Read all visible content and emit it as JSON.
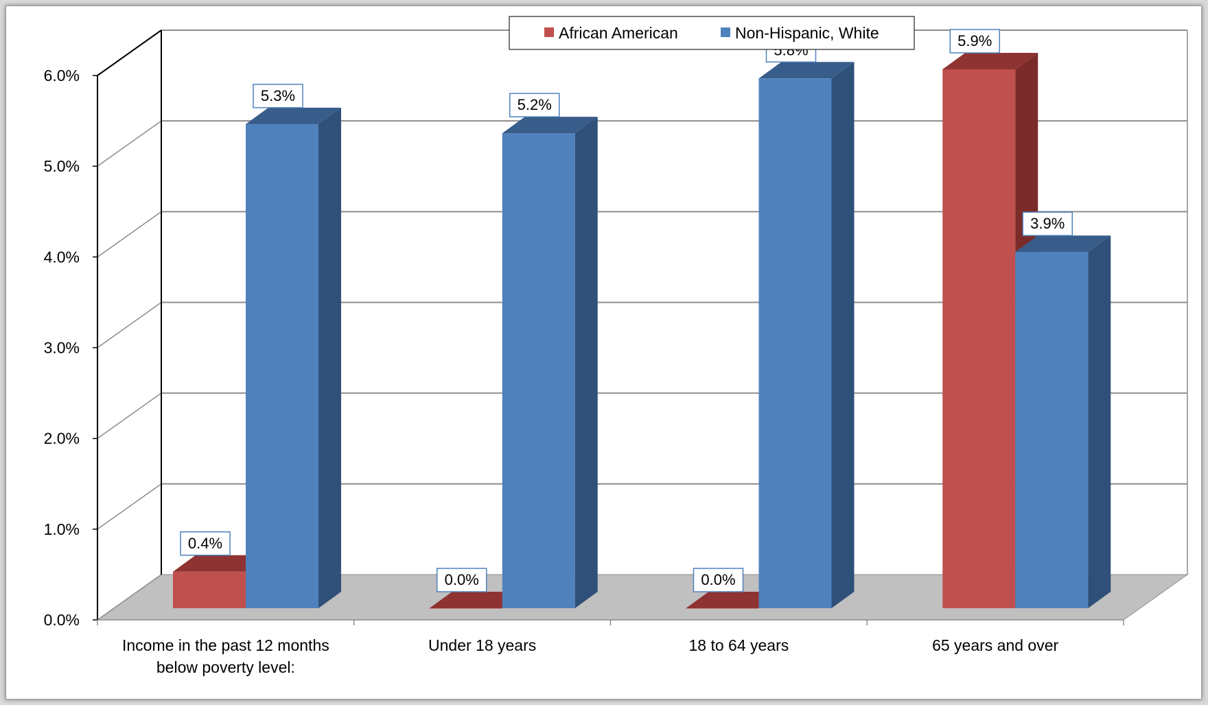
{
  "chart_data": {
    "type": "bar",
    "categories": [
      "Income in the past 12 months below poverty level:",
      "Under 18 years",
      "18 to 64 years",
      "65 years and over"
    ],
    "category_lines": [
      [
        "Income in the past 12 months",
        "below poverty level:"
      ],
      [
        "Under 18 years"
      ],
      [
        "18 to 64 years"
      ],
      [
        "65 years and over"
      ]
    ],
    "series": [
      {
        "name": "African American",
        "values": [
          0.4,
          0.0,
          0.0,
          5.9
        ],
        "labels": [
          "0.4%",
          "0.0%",
          "0.0%",
          "5.9%"
        ],
        "color": "#c0504d",
        "side_color": "#7b2c2a",
        "top_color": "#8e3331"
      },
      {
        "name": "Non-Hispanic, White",
        "values": [
          5.3,
          5.2,
          5.8,
          3.9
        ],
        "labels": [
          "5.3%",
          "5.2%",
          "5.8%",
          "3.9%"
        ],
        "color": "#4f81bd",
        "side_color": "#2f5079",
        "top_color": "#385d8a"
      }
    ],
    "yticks": [
      "0.0%",
      "1.0%",
      "2.0%",
      "3.0%",
      "4.0%",
      "5.0%",
      "6.0%"
    ],
    "ylim": [
      0,
      6
    ],
    "grid": true,
    "legend_position": "top-center",
    "three_d": true
  }
}
